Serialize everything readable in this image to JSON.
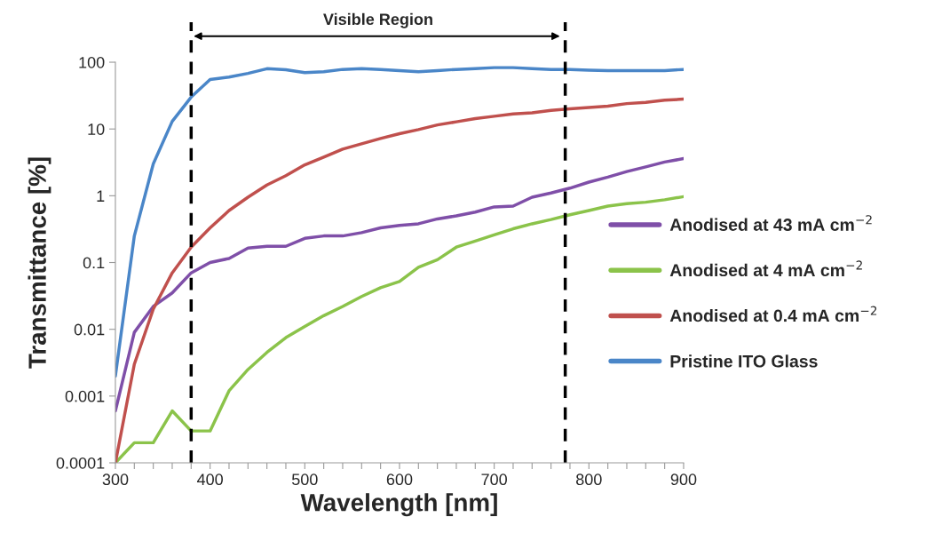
{
  "chart_data": {
    "type": "line",
    "xlabel": "Wavelength [nm]",
    "ylabel": "Transmittance [%]",
    "log": "y",
    "x": [
      300,
      320,
      340,
      360,
      380,
      400,
      420,
      440,
      460,
      480,
      500,
      520,
      540,
      560,
      580,
      600,
      620,
      640,
      660,
      680,
      700,
      720,
      740,
      760,
      780,
      800,
      820,
      840,
      860,
      880,
      900
    ],
    "series": [
      {
        "name": "Anodised at 43 mA cm$^{−2}$",
        "color": "#7f4fa8",
        "values": [
          0.0006,
          0.009,
          0.022,
          0.035,
          0.07,
          0.1,
          0.115,
          0.165,
          0.175,
          0.175,
          0.23,
          0.25,
          0.25,
          0.28,
          0.33,
          0.36,
          0.38,
          0.45,
          0.5,
          0.57,
          0.68,
          0.7,
          0.95,
          1.1,
          1.3,
          1.6,
          1.9,
          2.3,
          2.7,
          3.2,
          3.6
        ]
      },
      {
        "name": "Anodised at 4 mA cm$^{−2}$",
        "color": "#8bc34a",
        "values": [
          0.0001,
          0.0002,
          0.0002,
          0.0006,
          0.0003,
          0.0003,
          0.0012,
          0.0025,
          0.0045,
          0.0075,
          0.011,
          0.016,
          0.022,
          0.031,
          0.042,
          0.052,
          0.085,
          0.11,
          0.17,
          0.21,
          0.26,
          0.32,
          0.38,
          0.44,
          0.52,
          0.6,
          0.7,
          0.76,
          0.8,
          0.87,
          0.97
        ]
      },
      {
        "name": "Anodised at 0.4 mA cm$^{−2}$",
        "color": "#c0504d",
        "values": [
          0.0001,
          0.003,
          0.02,
          0.07,
          0.17,
          0.33,
          0.6,
          0.95,
          1.45,
          2.0,
          2.9,
          3.8,
          5.0,
          6.0,
          7.2,
          8.5,
          9.8,
          11.5,
          12.8,
          14.3,
          15.5,
          16.8,
          17.5,
          19,
          20,
          21,
          22,
          24,
          25,
          27,
          28
        ]
      },
      {
        "name": "Pristine ITO Glass",
        "color": "#4a86c8",
        "values": [
          0.002,
          0.25,
          3,
          13,
          30,
          55,
          60,
          68,
          80,
          77,
          70,
          72,
          78,
          80,
          78,
          75,
          72,
          75,
          78,
          80,
          83,
          83,
          80,
          78,
          78,
          76,
          75,
          75,
          75,
          75,
          78
        ]
      }
    ],
    "xlim": [
      300,
      900
    ],
    "xticks": [
      300,
      {
        "value": 320,
        "label": null
      },
      {
        "value": 340,
        "label": null
      },
      {
        "value": 360,
        "label": null
      },
      {
        "value": 380,
        "label": null
      },
      400,
      {
        "value": 420,
        "label": null
      },
      {
        "value": 440,
        "label": null
      },
      {
        "value": 460,
        "label": null
      },
      {
        "value": 480,
        "label": null
      },
      500,
      {
        "value": 520,
        "label": null
      },
      {
        "value": 540,
        "label": null
      },
      {
        "value": 560,
        "label": null
      },
      {
        "value": 580,
        "label": null
      },
      600,
      {
        "value": 620,
        "label": null
      },
      {
        "value": 640,
        "label": null
      },
      {
        "value": 660,
        "label": null
      },
      {
        "value": 680,
        "label": null
      },
      700,
      {
        "value": 720,
        "label": null
      },
      {
        "value": 740,
        "label": null
      },
      {
        "value": 760,
        "label": null
      },
      {
        "value": 780,
        "label": null
      },
      800,
      {
        "value": 820,
        "label": null
      },
      {
        "value": 840,
        "label": null
      },
      {
        "value": 860,
        "label": null
      },
      {
        "value": 880,
        "label": null
      },
      900
    ],
    "ylim": [
      0.0001,
      100
    ],
    "yticks": [
      0.0001,
      0.001,
      0.01,
      0.1,
      1,
      10,
      100
    ],
    "ref_lines": [
      {
        "axis": "x",
        "value": 380,
        "color": "#000000",
        "line_style": "dashed"
      },
      {
        "axis": "x",
        "value": 775,
        "color": "#000000",
        "line_style": "dashed"
      }
    ],
    "annotations": [
      "Visible Region"
    ],
    "legend": "right",
    "grid": false,
    "marker": "none",
    "line_style": "solid"
  }
}
